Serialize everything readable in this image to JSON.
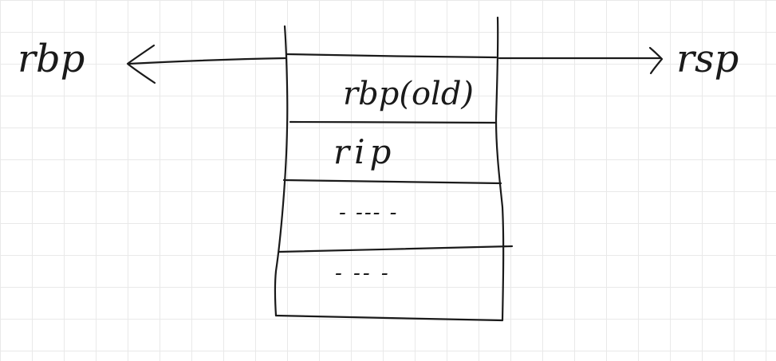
{
  "labels": {
    "left_pointer": "rbp",
    "right_pointer": "rsp"
  },
  "stack": {
    "cells": [
      {
        "text": "rbp(old)"
      },
      {
        "text": "rip"
      },
      {
        "text": "- --- -"
      },
      {
        "text": "- -- -"
      }
    ]
  },
  "colors": {
    "ink": "#1a1a1a",
    "grid": "#e9e9e9",
    "background": "#ffffff"
  }
}
